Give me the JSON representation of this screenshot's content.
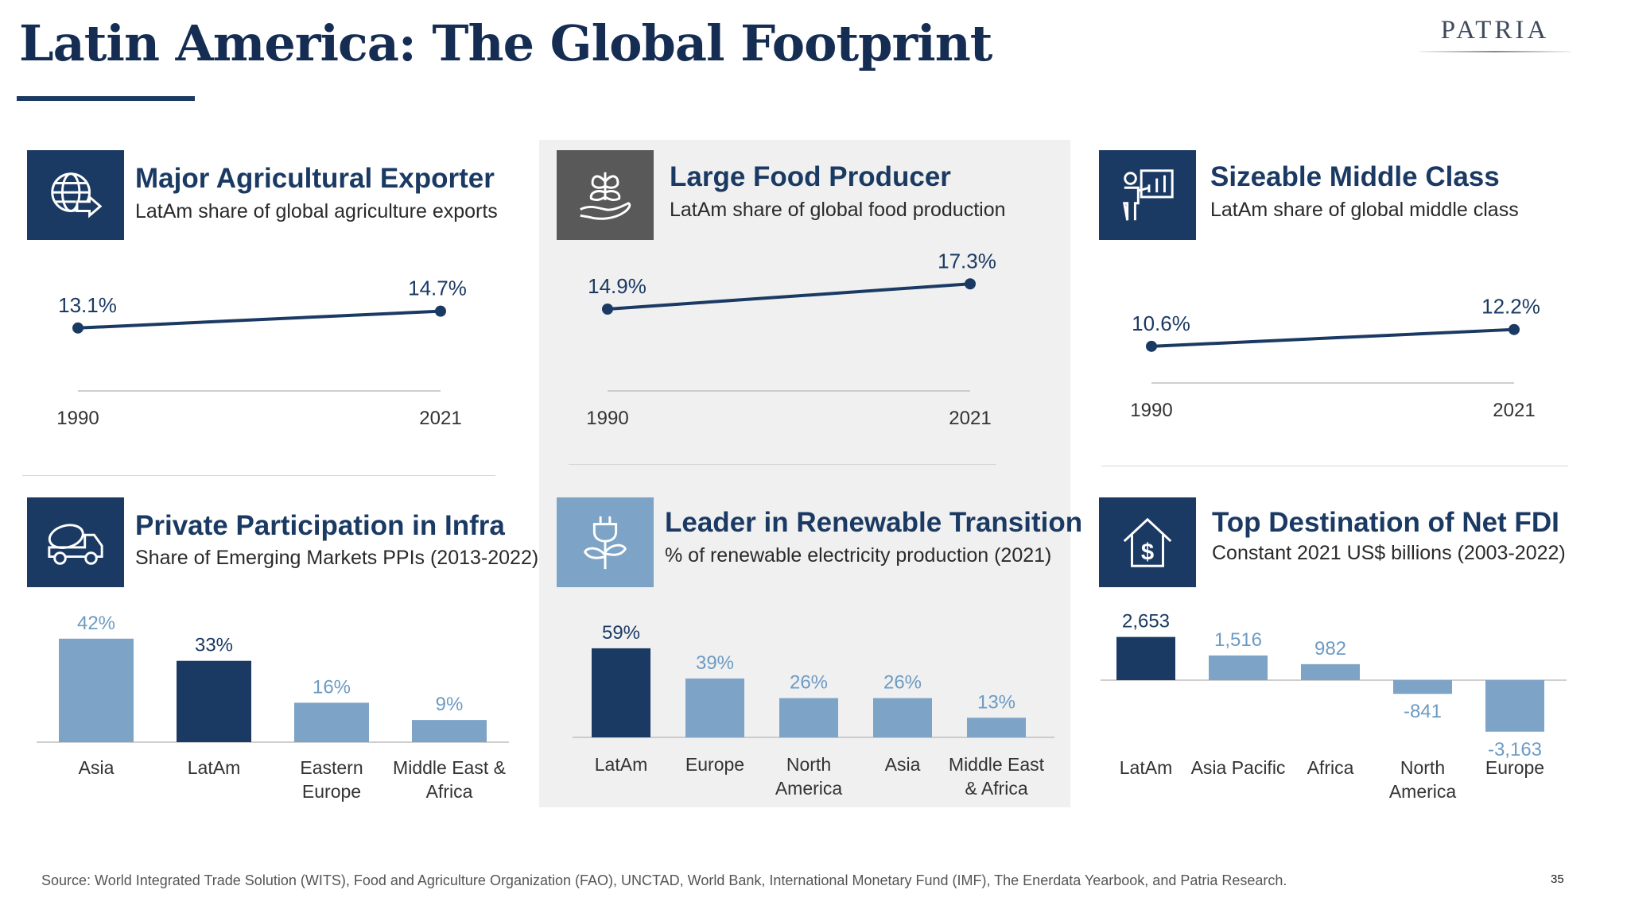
{
  "header": {
    "title": "Latin America: The Global Footprint",
    "logo": "PATRIA"
  },
  "panels": {
    "agri": {
      "title": "Major Agricultural Exporter",
      "subtitle": "LatAm share of global agriculture exports",
      "icon": "globe-arrow-icon"
    },
    "food": {
      "title": "Large Food Producer",
      "subtitle": "LatAm share of global food production",
      "icon": "plant-in-hand-icon"
    },
    "middle": {
      "title": "Sizeable Middle Class",
      "subtitle": "LatAm share of global middle class",
      "icon": "presenter-chart-icon"
    },
    "infra": {
      "title": "Private Participation in Infra",
      "subtitle": "Share of Emerging Markets PPIs (2013-2022)",
      "icon": "cement-truck-icon"
    },
    "renew": {
      "title": "Leader in Renewable Transition",
      "subtitle": "% of renewable electricity production (2021)",
      "icon": "plug-plant-icon"
    },
    "fdi": {
      "title": "Top Destination of Net FDI",
      "subtitle": "Constant 2021 US$ billions (2003-2022)",
      "icon": "house-dollar-icon"
    }
  },
  "chart_data": [
    {
      "id": "agri",
      "type": "line",
      "title": "Major Agricultural Exporter",
      "x": [
        "1990",
        "2021"
      ],
      "values": [
        13.1,
        14.7
      ],
      "labels": [
        "13.1%",
        "14.7%"
      ],
      "unit": "%"
    },
    {
      "id": "food",
      "type": "line",
      "title": "Large Food Producer",
      "x": [
        "1990",
        "2021"
      ],
      "values": [
        14.9,
        17.3
      ],
      "labels": [
        "14.9%",
        "17.3%"
      ],
      "unit": "%"
    },
    {
      "id": "middle",
      "type": "line",
      "title": "Sizeable Middle Class",
      "x": [
        "1990",
        "2021"
      ],
      "values": [
        10.6,
        12.2
      ],
      "labels": [
        "10.6%",
        "12.2%"
      ],
      "unit": "%"
    },
    {
      "id": "infra",
      "type": "bar",
      "title": "Private Participation in Infra",
      "categories": [
        [
          "Asia"
        ],
        [
          "LatAm"
        ],
        [
          "Eastern",
          "Europe"
        ],
        [
          "Middle East &",
          "Africa"
        ]
      ],
      "values": [
        42,
        33,
        16,
        9
      ],
      "labels": [
        "42%",
        "33%",
        "16%",
        "9%"
      ],
      "highlight": 1,
      "ylim": [
        0,
        42
      ]
    },
    {
      "id": "renew",
      "type": "bar",
      "title": "Leader in Renewable Transition",
      "categories": [
        [
          "LatAm"
        ],
        [
          "Europe"
        ],
        [
          "North",
          "America"
        ],
        [
          "Asia"
        ],
        [
          "Middle East",
          "& Africa"
        ]
      ],
      "values": [
        59,
        39,
        26,
        26,
        13
      ],
      "labels": [
        "59%",
        "39%",
        "26%",
        "26%",
        "13%"
      ],
      "highlight": 0,
      "ylim": [
        0,
        59
      ]
    },
    {
      "id": "fdi",
      "type": "bar",
      "title": "Top Destination of Net FDI",
      "categories": [
        [
          "LatAm"
        ],
        [
          "Asia Pacific"
        ],
        [
          "Africa"
        ],
        [
          "North",
          "America"
        ],
        [
          "Europe"
        ]
      ],
      "values": [
        2653,
        1516,
        982,
        -841,
        -3163
      ],
      "labels": [
        "2,653",
        "1,516",
        "982",
        "-841",
        "-3,163"
      ],
      "highlight": 0,
      "ylim": [
        -3163,
        2653
      ]
    }
  ],
  "colors": {
    "dark": "#1b3a63",
    "light": "#7da3c6",
    "label_light": "#6d9bc3",
    "gray_panel": "#f0f0f0"
  },
  "footer": {
    "source": "Source: World Integrated Trade Solution (WITS), Food and Agriculture Organization (FAO), UNCTAD, World Bank, International Monetary Fund (IMF), The Enerdata Yearbook, and Patria Research.",
    "page": "35"
  }
}
